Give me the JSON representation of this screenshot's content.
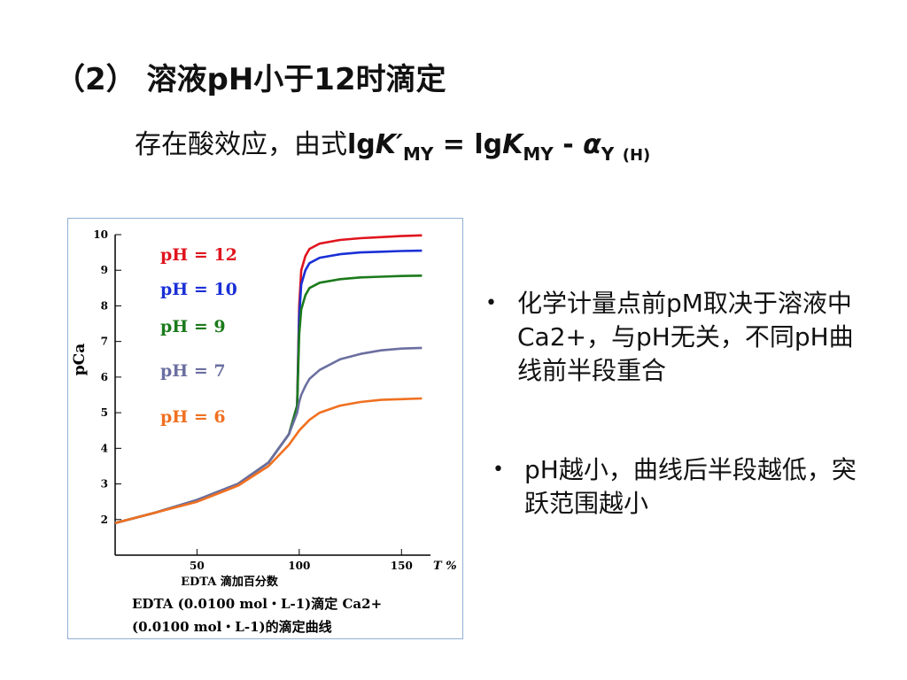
{
  "slide": {
    "title": "（2） 溶液pH小于12时滴定",
    "formula": {
      "prefix": "存在酸效应，由式",
      "lg1": "lg",
      "K1": "K′",
      "sub1": "MY",
      "eq": " = ",
      "lg2": "lg",
      "K2": "K",
      "sub2": "MY",
      "minus": " - ",
      "alpha": "α",
      "sub3": "Y",
      "sub4": "(H)"
    },
    "bullets": [
      "化学计量点前pM取决于溶液中Ca2+，与pH无关，不同pH曲线前半段重合",
      "pH越小，曲线后半段越低，突跃范围越小"
    ]
  },
  "chart_data": {
    "type": "line",
    "xlabel": "EDTA 滴加百分数",
    "x_unit_label": "T %",
    "ylabel": "pCa",
    "xlim": [
      10,
      162
    ],
    "ylim": [
      1,
      10
    ],
    "xticks": [
      50,
      100,
      150
    ],
    "yticks": [
      2,
      3,
      4,
      5,
      6,
      7,
      8,
      9,
      10
    ],
    "caption_line1": "EDTA (0.0100 mol・L-1)滴定 Ca2+",
    "caption_line2": "(0.0100 mol・L-1)的滴定曲线",
    "series": [
      {
        "name": "pH = 12",
        "color": "#e0141e",
        "x": [
          10,
          30,
          50,
          70,
          85,
          95,
          99,
          100,
          101,
          103,
          105,
          110,
          120,
          130,
          140,
          150,
          160
        ],
        "y": [
          1.9,
          2.2,
          2.55,
          3.0,
          3.6,
          4.4,
          5.2,
          8.0,
          9.0,
          9.4,
          9.6,
          9.75,
          9.85,
          9.9,
          9.93,
          9.96,
          9.98
        ]
      },
      {
        "name": "pH = 10",
        "color": "#1a2fd6",
        "x": [
          10,
          30,
          50,
          70,
          85,
          95,
          99,
          100,
          101,
          103,
          105,
          110,
          120,
          130,
          140,
          150,
          160
        ],
        "y": [
          1.9,
          2.2,
          2.55,
          3.0,
          3.6,
          4.4,
          5.2,
          7.7,
          8.6,
          9.0,
          9.2,
          9.35,
          9.45,
          9.5,
          9.52,
          9.54,
          9.55
        ]
      },
      {
        "name": "pH = 9",
        "color": "#1b7a1b",
        "x": [
          10,
          30,
          50,
          70,
          85,
          95,
          99,
          100,
          101,
          103,
          105,
          110,
          120,
          130,
          140,
          150,
          160
        ],
        "y": [
          1.9,
          2.2,
          2.55,
          3.0,
          3.6,
          4.4,
          5.2,
          7.2,
          7.9,
          8.3,
          8.5,
          8.65,
          8.75,
          8.8,
          8.82,
          8.84,
          8.85
        ]
      },
      {
        "name": "pH = 7",
        "color": "#6b6fa0",
        "x": [
          10,
          30,
          50,
          70,
          85,
          95,
          99,
          100,
          101,
          103,
          105,
          110,
          120,
          130,
          140,
          150,
          160
        ],
        "y": [
          1.9,
          2.2,
          2.55,
          3.0,
          3.6,
          4.4,
          5.0,
          5.3,
          5.5,
          5.75,
          5.95,
          6.2,
          6.5,
          6.65,
          6.75,
          6.8,
          6.82
        ]
      },
      {
        "name": "pH = 6",
        "color": "#f07020",
        "x": [
          10,
          30,
          50,
          70,
          85,
          95,
          100,
          105,
          110,
          120,
          130,
          140,
          150,
          160
        ],
        "y": [
          1.9,
          2.2,
          2.5,
          2.95,
          3.5,
          4.1,
          4.5,
          4.8,
          5.0,
          5.2,
          5.3,
          5.36,
          5.38,
          5.4
        ]
      }
    ]
  }
}
